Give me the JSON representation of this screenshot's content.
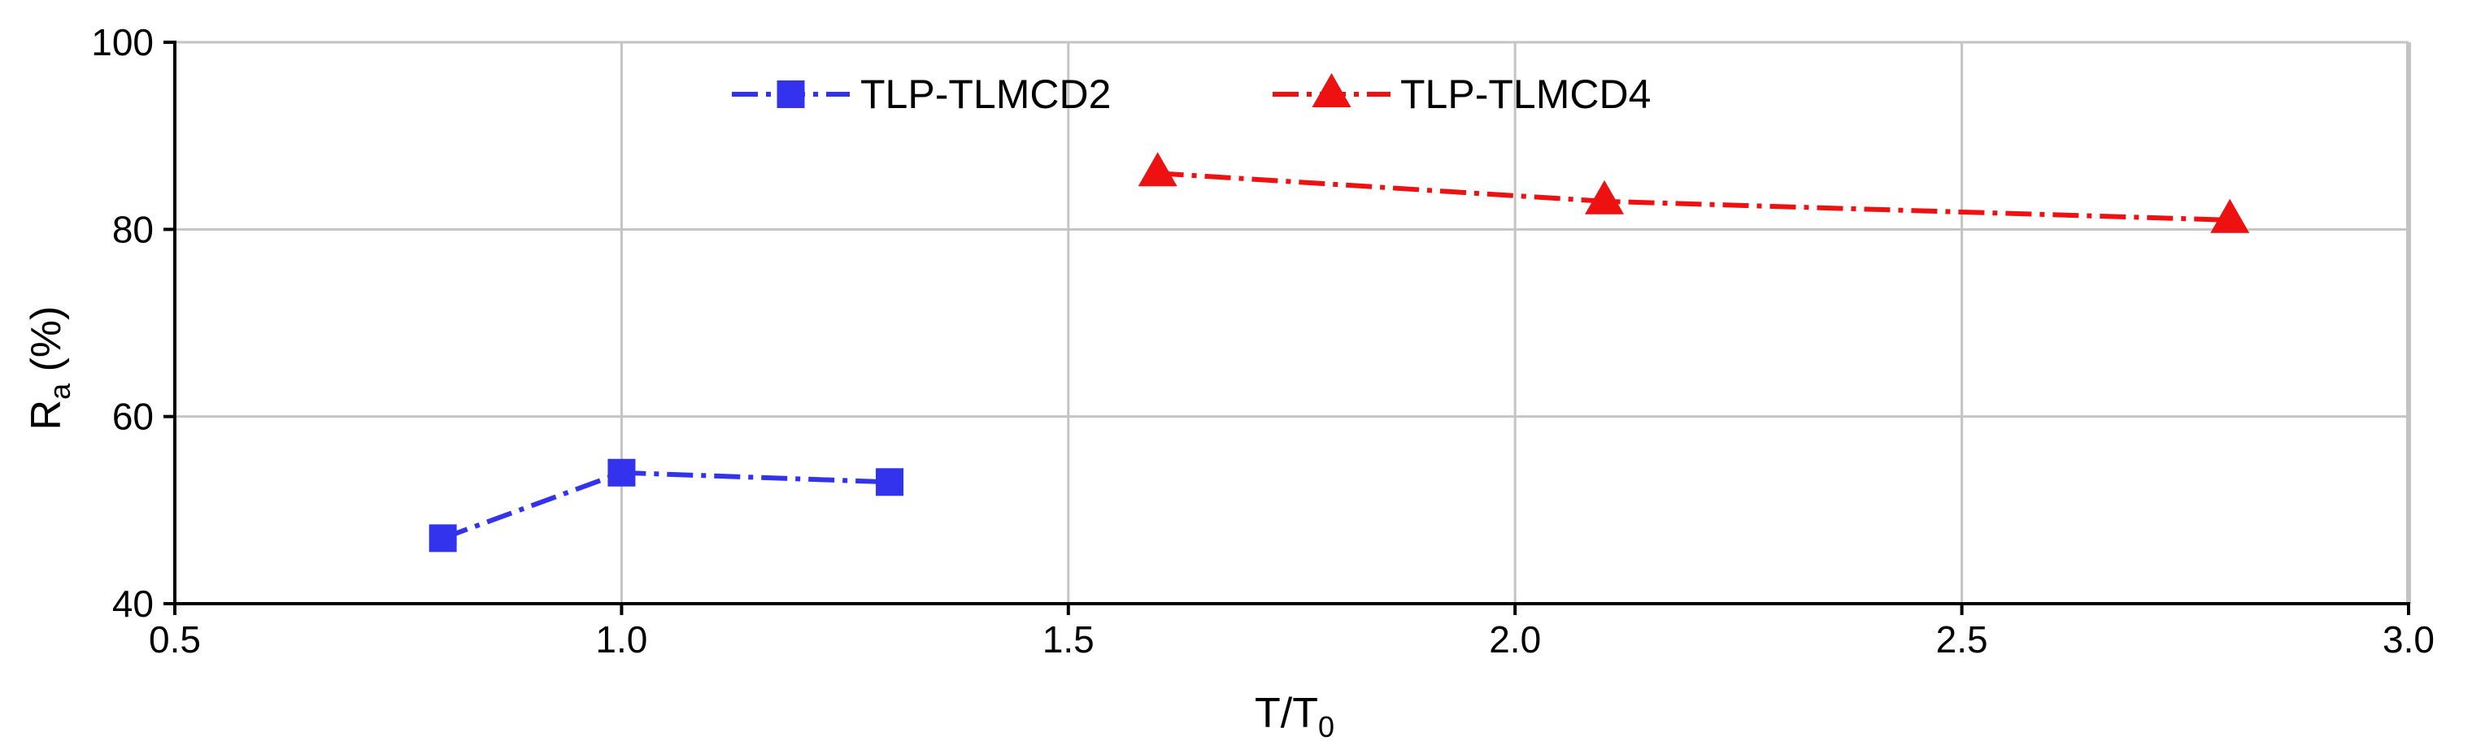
{
  "chart_data": {
    "type": "line",
    "xlabel": "T/T",
    "xlabel_sub": "0",
    "ylabel": "R",
    "ylabel_sub": "a",
    "ylabel_unit": " (%)",
    "xlim": [
      0.5,
      3.0
    ],
    "ylim": [
      40,
      100
    ],
    "xticks": [
      0.5,
      1.0,
      1.5,
      2.0,
      2.5,
      3.0
    ],
    "xtick_labels": [
      "0.5",
      "1.0",
      "1.5",
      "2.0",
      "2.5",
      "3.0"
    ],
    "yticks": [
      40,
      60,
      80,
      100
    ],
    "ytick_labels": [
      "40",
      "60",
      "80",
      "100"
    ],
    "grid": true,
    "legend_position": "top-center",
    "series": [
      {
        "name": "TLP-TLMCD2",
        "color": "#3333ee",
        "marker": "square",
        "line_style": "dash-dot",
        "x": [
          0.8,
          1.0,
          1.3
        ],
        "y": [
          47,
          54,
          53
        ]
      },
      {
        "name": "TLP-TLMCD4",
        "color": "#ee1111",
        "marker": "triangle",
        "line_style": "dash-dot",
        "x": [
          1.6,
          2.1,
          2.8
        ],
        "y": [
          86,
          83,
          81
        ]
      }
    ]
  }
}
